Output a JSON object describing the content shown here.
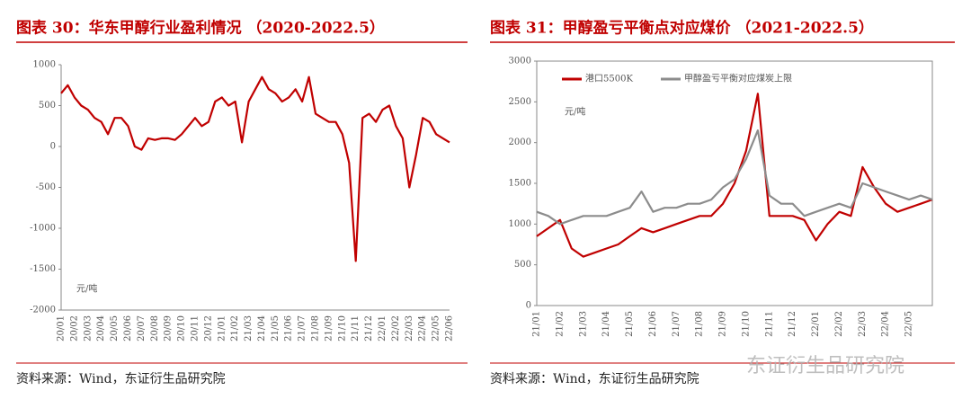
{
  "chart_data": [
    {
      "type": "line",
      "title": "图表 30：华东甲醇行业盈利情况 （2020-2022.5）",
      "unit_label": "元/吨",
      "source": "资料来源：Wind，东证衍生品研究院",
      "categories": [
        "20/01",
        null,
        "20/02",
        null,
        "20/03",
        null,
        "20/04",
        null,
        "20/05",
        null,
        "20/06",
        null,
        "20/07",
        null,
        "20/08",
        null,
        "20/09",
        null,
        "20/10",
        null,
        "20/11",
        null,
        "20/12",
        null,
        "21/01",
        null,
        "21/02",
        null,
        "21/03",
        null,
        "21/04",
        null,
        "21/05",
        null,
        "21/06",
        null,
        "21/07",
        null,
        "21/08",
        null,
        "21/09",
        null,
        "21/10",
        null,
        "21/11",
        null,
        "21/12",
        null,
        "22/01",
        null,
        "22/02",
        null,
        "22/03",
        null,
        "22/04",
        null,
        "22/05",
        null,
        "22/06"
      ],
      "series": [
        {
          "name": null,
          "color": "#c00000",
          "values": [
            650,
            750,
            600,
            500,
            450,
            350,
            300,
            150,
            350,
            350,
            250,
            0,
            -40,
            100,
            80,
            100,
            100,
            80,
            150,
            250,
            350,
            250,
            300,
            550,
            600,
            500,
            550,
            50,
            550,
            700,
            850,
            700,
            650,
            550,
            600,
            700,
            550,
            850,
            400,
            350,
            300,
            300,
            150,
            -200,
            -1400,
            350,
            400,
            300,
            450,
            500,
            250,
            100,
            -500,
            -100,
            350,
            300,
            150,
            100,
            50
          ]
        }
      ],
      "ylim": [
        -2000,
        1000
      ],
      "yticks": [
        -2000,
        -1500,
        -1000,
        -500,
        0,
        500,
        1000
      ],
      "legend": false,
      "frame": false
    },
    {
      "type": "line",
      "title": "图表 31：甲醇盈亏平衡点对应煤价 （2021-2022.5）",
      "unit_label": "元/吨",
      "source": "资料来源：Wind，东证衍生品研究院",
      "categories": [
        "21/01",
        null,
        "21/02",
        null,
        "21/03",
        null,
        "21/04",
        null,
        "21/05",
        null,
        "21/06",
        null,
        "21/07",
        null,
        "21/08",
        null,
        "21/09",
        null,
        "21/10",
        null,
        "21/11",
        null,
        "21/12",
        null,
        "22/01",
        null,
        "22/02",
        null,
        "22/03",
        null,
        "22/04",
        null,
        "22/05",
        null,
        null
      ],
      "series": [
        {
          "name": "港口5500K",
          "color": "#c00000",
          "values": [
            850,
            950,
            1050,
            700,
            600,
            650,
            700,
            750,
            850,
            950,
            900,
            950,
            1000,
            1050,
            1100,
            1100,
            1250,
            1500,
            1900,
            2600,
            1100,
            1100,
            1100,
            1050,
            800,
            1000,
            1150,
            1100,
            1700,
            1450,
            1250,
            1150,
            1200,
            1250,
            1300
          ]
        },
        {
          "name": "甲醇盈亏平衡对应煤炭上限",
          "color": "#8c8c8c",
          "values": [
            1150,
            1100,
            1000,
            1050,
            1100,
            1100,
            1100,
            1150,
            1200,
            1400,
            1150,
            1200,
            1200,
            1250,
            1250,
            1300,
            1450,
            1550,
            1800,
            2150,
            1350,
            1250,
            1250,
            1100,
            1150,
            1200,
            1250,
            1200,
            1500,
            1450,
            1400,
            1350,
            1300,
            1350,
            1300
          ]
        }
      ],
      "ylim": [
        0,
        3000
      ],
      "yticks": [
        0,
        500,
        1000,
        1500,
        2000,
        2500,
        3000
      ],
      "legend": "top-left",
      "frame": true
    }
  ],
  "watermark": "东证衍生品研究院"
}
